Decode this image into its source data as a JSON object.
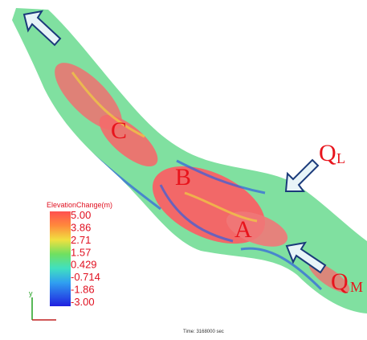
{
  "labels": {
    "c": "C",
    "b": "B",
    "a": "A",
    "q_l": "Q",
    "q_l_sub": "L",
    "q_m": "Q",
    "q_m_sub": "M"
  },
  "colorbar": {
    "title": "ElevationChange(m)",
    "labels": [
      "5.00",
      "3.86",
      "2.71",
      "1.57",
      "0.429",
      "-0.714",
      "-1.86",
      "-3.00"
    ]
  },
  "axes": {
    "y": "y"
  },
  "time": "Time: 3168000 sec"
}
